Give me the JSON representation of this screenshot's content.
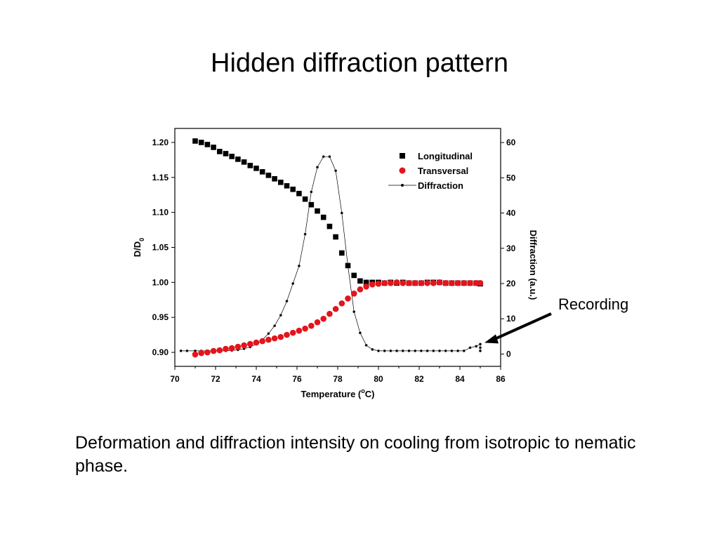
{
  "slide": {
    "title": "Hidden diffraction pattern",
    "caption": "Deformation and diffraction intensity on cooling from isotropic to nematic phase."
  },
  "chart_data": {
    "type": "scatter",
    "xlabel": "Temperature (",
    "xlabel_sup": "o",
    "xlabel_end": "C)",
    "ylabel": "D/D",
    "ylabel_sub": "0",
    "y2label": "Diffraction (a.u.)",
    "xlim": [
      70,
      86
    ],
    "ylim": [
      0.88,
      1.22
    ],
    "y2lim": [
      -3.5,
      64
    ],
    "x_ticks": [
      "70",
      "72",
      "74",
      "76",
      "78",
      "80",
      "82",
      "84",
      "86"
    ],
    "y_ticks": [
      "0.90",
      "0.95",
      "1.00",
      "1.05",
      "1.10",
      "1.15",
      "1.20"
    ],
    "y2_ticks": [
      "0",
      "10",
      "20",
      "30",
      "40",
      "50",
      "60"
    ],
    "grid": false,
    "legend_position": "top-right",
    "colors": {
      "longitudinal": "#000000",
      "transversal": "#e3141b",
      "diffraction": "#000000"
    },
    "series": [
      {
        "name": "Longitudinal",
        "axis": "left",
        "marker": "square",
        "x": [
          71.0,
          71.3,
          71.6,
          71.9,
          72.2,
          72.5,
          72.8,
          73.1,
          73.4,
          73.7,
          74.0,
          74.3,
          74.6,
          74.9,
          75.2,
          75.5,
          75.8,
          76.1,
          76.4,
          76.7,
          77.0,
          77.3,
          77.6,
          77.9,
          78.2,
          78.5,
          78.8,
          79.1,
          79.4,
          79.7,
          80.0,
          80.3,
          80.6,
          80.9,
          81.2,
          81.5,
          81.8,
          82.1,
          82.4,
          82.7,
          83.0,
          83.3,
          83.6,
          83.9,
          84.2,
          84.5,
          84.8,
          85.0
        ],
        "y": [
          1.202,
          1.2,
          1.197,
          1.193,
          1.187,
          1.184,
          1.18,
          1.176,
          1.172,
          1.167,
          1.163,
          1.158,
          1.153,
          1.148,
          1.143,
          1.138,
          1.133,
          1.127,
          1.119,
          1.111,
          1.102,
          1.093,
          1.08,
          1.065,
          1.042,
          1.024,
          1.01,
          1.002,
          1.0,
          1.0,
          1.0,
          0.999,
          1.0,
          0.999,
          1.0,
          0.999,
          0.999,
          0.999,
          1.0,
          1.0,
          1.0,
          0.999,
          0.999,
          0.999,
          0.999,
          0.999,
          0.999,
          0.998
        ]
      },
      {
        "name": "Transversal",
        "axis": "left",
        "marker": "circle",
        "x": [
          71.0,
          71.3,
          71.6,
          71.9,
          72.2,
          72.5,
          72.8,
          73.1,
          73.4,
          73.7,
          74.0,
          74.3,
          74.6,
          74.9,
          75.2,
          75.5,
          75.8,
          76.1,
          76.4,
          76.7,
          77.0,
          77.3,
          77.6,
          77.9,
          78.2,
          78.5,
          78.8,
          79.1,
          79.4,
          79.7,
          80.0,
          80.3,
          80.6,
          80.9,
          81.2,
          81.5,
          81.8,
          82.1,
          82.4,
          82.7,
          83.0,
          83.3,
          83.6,
          83.9,
          84.2,
          84.5,
          84.8,
          85.0
        ],
        "y": [
          0.897,
          0.899,
          0.9,
          0.902,
          0.903,
          0.905,
          0.906,
          0.908,
          0.91,
          0.912,
          0.914,
          0.916,
          0.918,
          0.92,
          0.922,
          0.925,
          0.928,
          0.931,
          0.934,
          0.938,
          0.943,
          0.948,
          0.955,
          0.962,
          0.97,
          0.977,
          0.984,
          0.99,
          0.994,
          0.997,
          0.998,
          0.999,
          0.999,
          1.0,
          0.999,
          0.999,
          0.999,
          0.999,
          0.999,
          0.999,
          1.0,
          0.999,
          0.999,
          0.999,
          0.999,
          0.999,
          0.999,
          0.999
        ]
      },
      {
        "name": "Diffraction",
        "axis": "right",
        "marker": "line-dot",
        "x": [
          70.3,
          70.6,
          71.0,
          71.3,
          71.6,
          71.9,
          72.2,
          72.5,
          72.8,
          73.1,
          73.4,
          73.7,
          74.0,
          74.3,
          74.6,
          74.9,
          75.2,
          75.5,
          75.8,
          76.1,
          76.4,
          76.7,
          77.0,
          77.3,
          77.6,
          77.9,
          78.2,
          78.5,
          78.8,
          79.1,
          79.4,
          79.7,
          80.0,
          80.3,
          80.6,
          80.9,
          81.2,
          81.5,
          81.8,
          82.1,
          82.4,
          82.7,
          83.0,
          83.3,
          83.6,
          83.9,
          84.2,
          84.5,
          84.8,
          85.0,
          85.0,
          85.0
        ],
        "y": [
          0.9,
          0.9,
          0.9,
          0.9,
          0.9,
          0.9,
          0.9,
          0.9,
          1.0,
          1.2,
          1.5,
          2.0,
          2.8,
          4.0,
          5.8,
          8.0,
          11.0,
          15.0,
          20.0,
          25.0,
          34.0,
          46.0,
          53.0,
          56.0,
          56.0,
          52.0,
          40.0,
          25.0,
          12.0,
          6.0,
          2.5,
          1.3,
          0.9,
          0.9,
          0.9,
          0.9,
          0.9,
          0.9,
          0.9,
          0.9,
          0.9,
          0.9,
          0.9,
          0.9,
          0.9,
          0.9,
          0.9,
          1.8,
          2.2,
          2.8,
          1.8,
          0.9
        ]
      }
    ],
    "annotation": {
      "text": "Recording",
      "x": 85.0,
      "y2": 2.8
    }
  }
}
